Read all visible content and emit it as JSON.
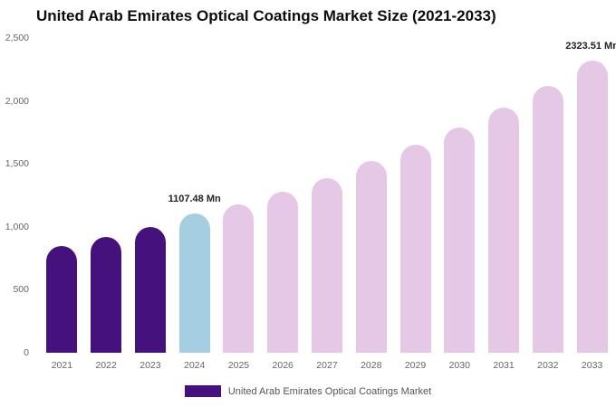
{
  "title": "United Arab Emirates Optical Coatings Market Size (2021-2033)",
  "legend": {
    "label": "United Arab Emirates Optical Coatings Market",
    "color": "#45117c"
  },
  "colors": {
    "historical": "#45117c",
    "current_year": "#a6cee3",
    "forecast": "#e5c7e6",
    "background": "#ffffff",
    "axis_text": "#666666",
    "data_label_text": "#222222"
  },
  "chart_data": {
    "type": "bar",
    "title": "United Arab Emirates Optical Coatings Market Size (2021-2033)",
    "xlabel": "",
    "ylabel": "",
    "ylim": [
      0,
      2500
    ],
    "yticks": [
      0,
      500,
      1000,
      1500,
      2000,
      2500
    ],
    "ytick_labels": [
      "0",
      "500",
      "1,000",
      "1,500",
      "2,000",
      "2,500"
    ],
    "grid": false,
    "legend_position": "bottom",
    "categories": [
      "2021",
      "2022",
      "2023",
      "2024",
      "2025",
      "2026",
      "2027",
      "2028",
      "2029",
      "2030",
      "2031",
      "2032",
      "2033"
    ],
    "values": [
      850,
      920,
      1000,
      1107.48,
      1180,
      1280,
      1390,
      1520,
      1650,
      1790,
      1950,
      2120,
      2323.51
    ],
    "bar_colors": [
      "#45117c",
      "#45117c",
      "#45117c",
      "#a6cee3",
      "#e5c7e6",
      "#e5c7e6",
      "#e5c7e6",
      "#e5c7e6",
      "#e5c7e6",
      "#e5c7e6",
      "#e5c7e6",
      "#e5c7e6",
      "#e5c7e6"
    ],
    "annotations": [
      {
        "category": "2024",
        "text": "1107.48 Mn"
      },
      {
        "category": "2033",
        "text": "2323.51 Mn"
      }
    ]
  }
}
